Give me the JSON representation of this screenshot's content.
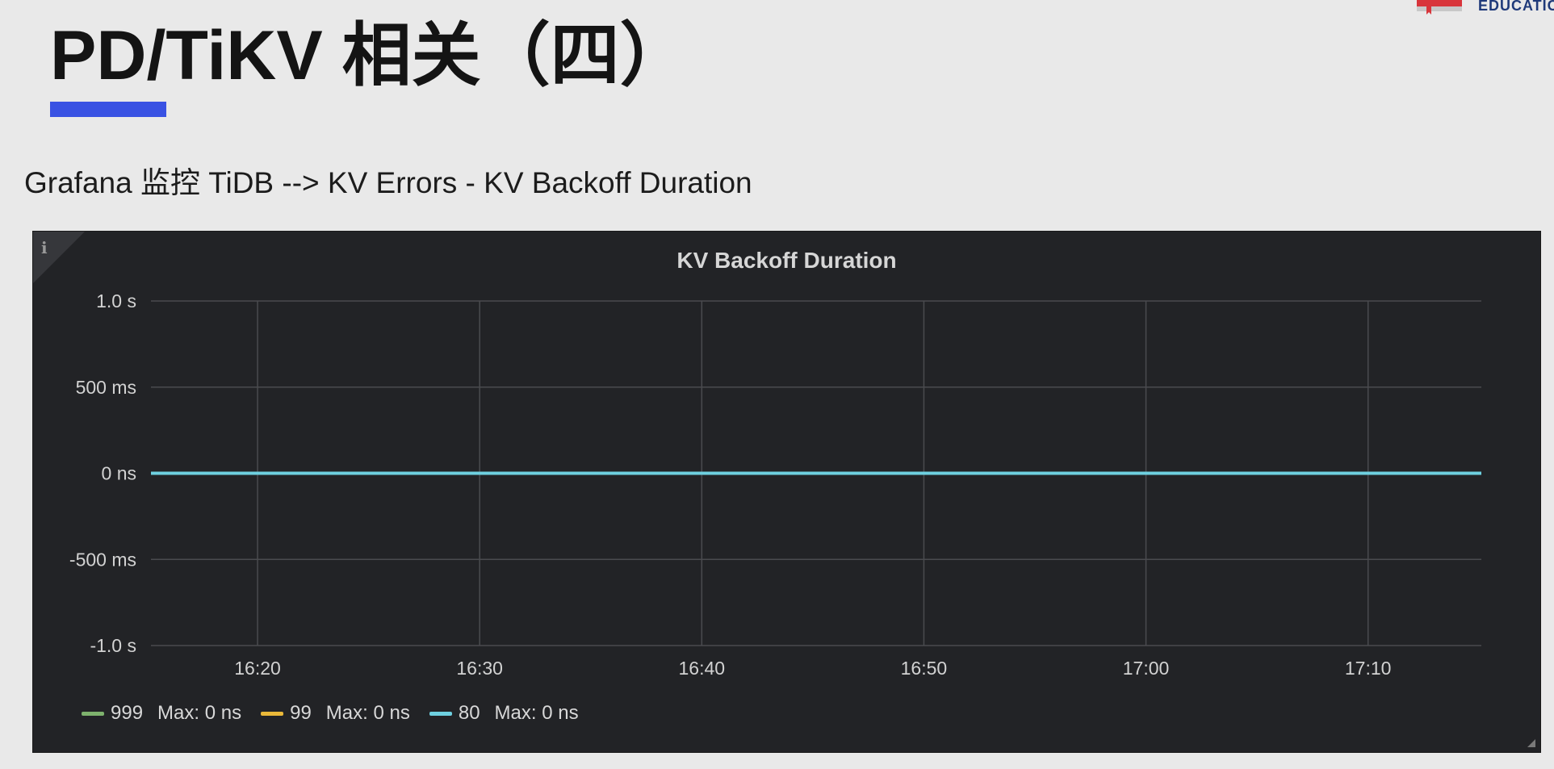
{
  "brand": {
    "text": "EDUCATIO"
  },
  "slide": {
    "title": "PD/TiKV 相关（四）",
    "subtitle": "Grafana 监控 TiDB --> KV Errors - KV Backoff Duration"
  },
  "panel": {
    "info_icon": "i"
  },
  "chart_data": {
    "type": "line",
    "title": "KV Backoff Duration",
    "y_ticks": [
      "1.0 s",
      "500 ms",
      "0 ns",
      "-500 ms",
      "-1.0 s"
    ],
    "y_tick_values": [
      1000,
      500,
      0,
      -500,
      -1000
    ],
    "ylim": [
      -1000,
      1000
    ],
    "y_unit": "ms",
    "x_ticks": [
      "16:20",
      "16:30",
      "16:40",
      "16:50",
      "17:00",
      "17:10"
    ],
    "x_tick_minutes": [
      980,
      990,
      1000,
      1010,
      1020,
      1030
    ],
    "xlim_minutes": [
      975.2,
      1035.1
    ],
    "grid": true,
    "legend_position": "bottom",
    "series": [
      {
        "name": "999",
        "color": "#7eb26d",
        "max_label": "Max: 0 ns",
        "points": [
          [
            975.2,
            0
          ],
          [
            1035.1,
            0
          ]
        ]
      },
      {
        "name": "99",
        "color": "#eab839",
        "max_label": "Max: 0 ns",
        "points": [
          [
            975.2,
            0
          ],
          [
            1035.1,
            0
          ]
        ]
      },
      {
        "name": "80",
        "color": "#6ed0e0",
        "max_label": "Max: 0 ns",
        "points": [
          [
            975.2,
            0
          ],
          [
            1035.1,
            0
          ]
        ]
      }
    ]
  }
}
